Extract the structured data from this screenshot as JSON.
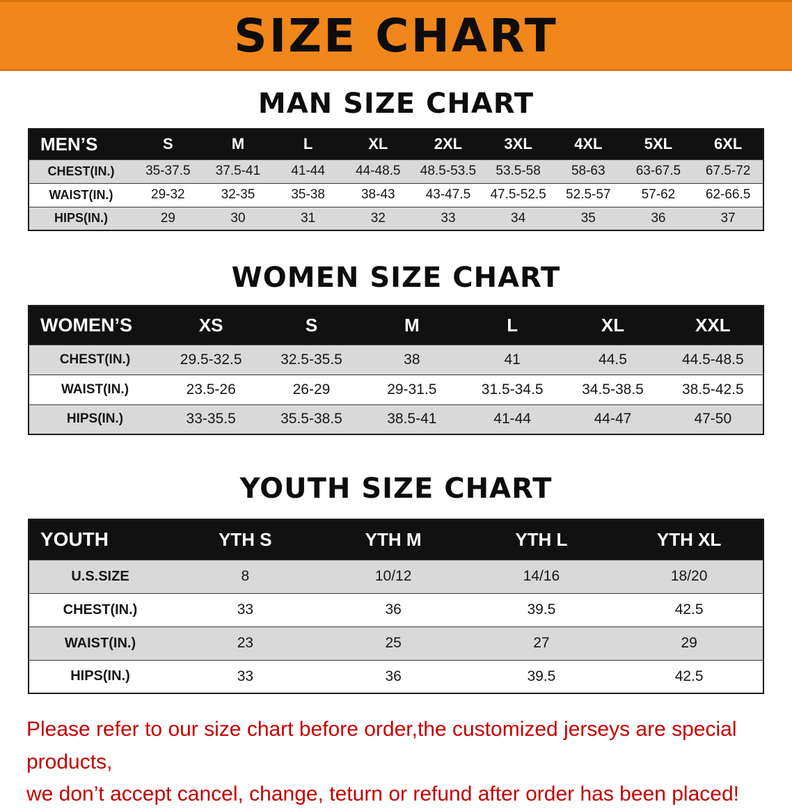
{
  "colors": {
    "banner-orange": "#F1861B",
    "header-black": "#111111",
    "stripe-gray": "#D9D9D9",
    "warning-red": "#C40000"
  },
  "banner": {
    "title": "SIZE CHART"
  },
  "sections": [
    {
      "heading": "MAN SIZE CHART",
      "table": {
        "header": [
          "MEN’S",
          "S",
          "M",
          "L",
          "XL",
          "2XL",
          "3XL",
          "4XL",
          "5XL",
          "6XL"
        ],
        "rows": [
          {
            "label": "CHEST(IN.)",
            "values": [
              "35-37.5",
              "37.5-41",
              "41-44",
              "44-48.5",
              "48.5-53.5",
              "53.5-58",
              "58-63",
              "63-67.5",
              "67.5-72"
            ]
          },
          {
            "label": "WAIST(IN.)",
            "values": [
              "29-32",
              "32-35",
              "35-38",
              "38-43",
              "43-47.5",
              "47.5-52.5",
              "52.5-57",
              "57-62",
              "62-66.5"
            ]
          },
          {
            "label": "HIPS(IN.)",
            "values": [
              "29",
              "30",
              "31",
              "32",
              "33",
              "34",
              "35",
              "36",
              "37"
            ]
          }
        ]
      }
    },
    {
      "heading": "WOMEN SIZE CHART",
      "table": {
        "header": [
          "WOMEN’S",
          "XS",
          "S",
          "M",
          "L",
          "XL",
          "XXL"
        ],
        "rows": [
          {
            "label": "CHEST(IN.)",
            "values": [
              "29.5-32.5",
              "32.5-35.5",
              "38",
              "41",
              "44.5",
              "44.5-48.5"
            ]
          },
          {
            "label": "WAIST(IN.)",
            "values": [
              "23.5-26",
              "26-29",
              "29-31.5",
              "31.5-34.5",
              "34.5-38.5",
              "38.5-42.5"
            ]
          },
          {
            "label": "HIPS(IN.)",
            "values": [
              "33-35.5",
              "35.5-38.5",
              "38.5-41",
              "41-44",
              "44-47",
              "47-50"
            ]
          }
        ]
      }
    },
    {
      "heading": "YOUTH SIZE CHART",
      "table": {
        "header": [
          "YOUTH",
          "YTH S",
          "YTH M",
          "YTH L",
          "YTH XL"
        ],
        "rows": [
          {
            "label": "U.S.SIZE",
            "values": [
              "8",
              "10/12",
              "14/16",
              "18/20"
            ]
          },
          {
            "label": "CHEST(IN.)",
            "values": [
              "33",
              "36",
              "39.5",
              "42.5"
            ]
          },
          {
            "label": "WAIST(IN.)",
            "values": [
              "23",
              "25",
              "27",
              "29"
            ]
          },
          {
            "label": "HIPS(IN.)",
            "values": [
              "33",
              "36",
              "39.5",
              "42.5"
            ]
          }
        ]
      }
    }
  ],
  "disclaimer": {
    "lines": [
      "Please refer to our size chart before order,the customized jerseys are special products,",
      "we don’t accept cancel, change, teturn or refund after order has been placed!"
    ]
  }
}
